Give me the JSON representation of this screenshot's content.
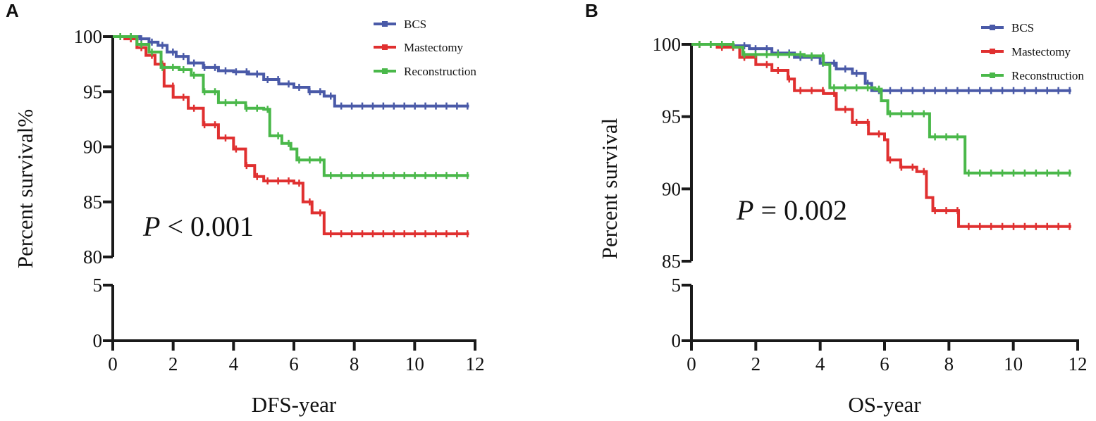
{
  "chart_data": [
    {
      "panel": "A",
      "type": "line",
      "subtype": "kaplan-meier",
      "xlabel": "DFS-year",
      "ylabel": "Percent survival%",
      "xlim": [
        0,
        12
      ],
      "xticks": [
        "0",
        "2",
        "4",
        "6",
        "8",
        "10",
        "12"
      ],
      "ylim_upper": [
        80,
        100
      ],
      "yticks_upper": [
        "80",
        "85",
        "90",
        "95",
        "100"
      ],
      "ylim_lower": [
        0,
        5
      ],
      "yticks_lower": [
        "0",
        "5"
      ],
      "annotation": {
        "p_symbol": "P",
        "p_text": " < 0.001"
      },
      "legend_position": "top-right",
      "series": [
        {
          "name": "BCS",
          "color": "#4a5aa8",
          "points": [
            [
              0,
              100
            ],
            [
              0.5,
              100
            ],
            [
              0.9,
              99.8
            ],
            [
              1.2,
              99.5
            ],
            [
              1.5,
              99.2
            ],
            [
              1.8,
              98.6
            ],
            [
              2.1,
              98.2
            ],
            [
              2.5,
              97.6
            ],
            [
              3.0,
              97.2
            ],
            [
              3.5,
              96.9
            ],
            [
              4.0,
              96.8
            ],
            [
              4.5,
              96.6
            ],
            [
              5.0,
              96.1
            ],
            [
              5.5,
              95.7
            ],
            [
              6.0,
              95.4
            ],
            [
              6.5,
              95.0
            ],
            [
              7.0,
              94.6
            ],
            [
              7.35,
              93.7
            ],
            [
              11.8,
              93.7
            ]
          ]
        },
        {
          "name": "Mastectomy",
          "color": "#e03030",
          "points": [
            [
              0,
              100
            ],
            [
              0.4,
              99.8
            ],
            [
              0.8,
              99.0
            ],
            [
              1.1,
              98.3
            ],
            [
              1.4,
              97.5
            ],
            [
              1.7,
              95.5
            ],
            [
              2.0,
              94.5
            ],
            [
              2.5,
              93.5
            ],
            [
              3.0,
              92.0
            ],
            [
              3.5,
              90.8
            ],
            [
              4.0,
              89.8
            ],
            [
              4.4,
              88.3
            ],
            [
              4.7,
              87.3
            ],
            [
              5.0,
              86.9
            ],
            [
              5.5,
              86.9
            ],
            [
              6.0,
              86.7
            ],
            [
              6.3,
              85.0
            ],
            [
              6.6,
              84.0
            ],
            [
              7.0,
              82.1
            ],
            [
              11.8,
              82.1
            ]
          ]
        },
        {
          "name": "Reconstruction",
          "color": "#4ab84a",
          "points": [
            [
              0,
              100
            ],
            [
              0.8,
              99.3
            ],
            [
              1.2,
              98.6
            ],
            [
              1.6,
              97.2
            ],
            [
              2.2,
              97.0
            ],
            [
              2.6,
              96.5
            ],
            [
              3.0,
              95.0
            ],
            [
              3.5,
              94.0
            ],
            [
              4.2,
              94.0
            ],
            [
              4.4,
              93.5
            ],
            [
              5.0,
              93.4
            ],
            [
              5.2,
              91.0
            ],
            [
              5.6,
              90.3
            ],
            [
              5.9,
              89.8
            ],
            [
              6.1,
              88.8
            ],
            [
              6.8,
              88.8
            ],
            [
              7.0,
              87.4
            ],
            [
              11.8,
              87.4
            ]
          ]
        }
      ]
    },
    {
      "panel": "B",
      "type": "line",
      "subtype": "kaplan-meier",
      "xlabel": "OS-year",
      "ylabel": "Percent survival",
      "xlim": [
        0,
        12
      ],
      "xticks": [
        "0",
        "2",
        "4",
        "6",
        "8",
        "10",
        "12"
      ],
      "ylim_upper": [
        85,
        100
      ],
      "yticks_upper": [
        "85",
        "90",
        "95",
        "100"
      ],
      "ylim_lower": [
        0,
        5
      ],
      "yticks_lower": [
        "0",
        "5"
      ],
      "annotation": {
        "p_symbol": "P",
        "p_text": " = 0.002"
      },
      "legend_position": "top-right",
      "series": [
        {
          "name": "BCS",
          "color": "#4a5aa8",
          "points": [
            [
              0,
              100
            ],
            [
              1.0,
              99.9
            ],
            [
              1.8,
              99.7
            ],
            [
              2.5,
              99.4
            ],
            [
              3.2,
              99.1
            ],
            [
              4.0,
              98.7
            ],
            [
              4.5,
              98.3
            ],
            [
              5.0,
              98.0
            ],
            [
              5.4,
              97.3
            ],
            [
              5.6,
              96.8
            ],
            [
              11.8,
              96.8
            ]
          ]
        },
        {
          "name": "Mastectomy",
          "color": "#e03030",
          "points": [
            [
              0,
              100
            ],
            [
              0.8,
              99.8
            ],
            [
              1.5,
              99.1
            ],
            [
              2.0,
              98.6
            ],
            [
              2.5,
              98.2
            ],
            [
              3.0,
              97.6
            ],
            [
              3.2,
              96.8
            ],
            [
              4.1,
              96.6
            ],
            [
              4.5,
              95.5
            ],
            [
              5.0,
              94.6
            ],
            [
              5.5,
              93.8
            ],
            [
              6.0,
              93.4
            ],
            [
              6.1,
              92.0
            ],
            [
              6.5,
              91.5
            ],
            [
              7.0,
              91.2
            ],
            [
              7.3,
              89.4
            ],
            [
              7.5,
              88.5
            ],
            [
              8.2,
              88.5
            ],
            [
              8.3,
              87.4
            ],
            [
              11.8,
              87.4
            ]
          ]
        },
        {
          "name": "Reconstruction",
          "color": "#4ab84a",
          "points": [
            [
              0,
              100
            ],
            [
              1.3,
              99.8
            ],
            [
              1.6,
              99.3
            ],
            [
              3.5,
              99.2
            ],
            [
              4.1,
              98.6
            ],
            [
              4.3,
              97.0
            ],
            [
              5.7,
              96.9
            ],
            [
              5.9,
              96.1
            ],
            [
              6.1,
              95.2
            ],
            [
              7.3,
              95.2
            ],
            [
              7.4,
              93.6
            ],
            [
              8.4,
              93.6
            ],
            [
              8.5,
              91.1
            ],
            [
              11.8,
              91.1
            ]
          ]
        }
      ]
    }
  ],
  "panels": [
    {
      "letter": "A"
    },
    {
      "letter": "B"
    }
  ]
}
